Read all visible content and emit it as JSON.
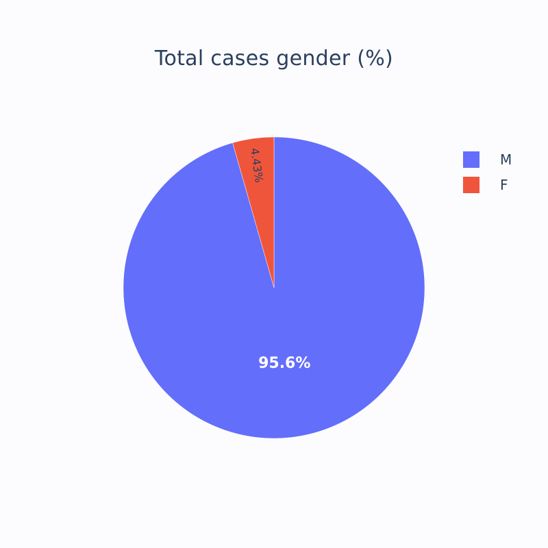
{
  "chart_data": {
    "type": "pie",
    "title": "Total cases gender (%)",
    "categories": [
      "M",
      "F"
    ],
    "values": [
      95.6,
      4.43
    ],
    "labels": [
      "95.6%",
      "4.43%"
    ],
    "colors": [
      "#636efa",
      "#ef553b"
    ],
    "legend_position": "top-right",
    "direction": "clockwise",
    "start": "top"
  }
}
